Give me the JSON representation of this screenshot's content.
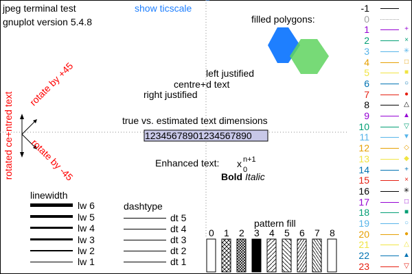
{
  "header": {
    "terminal": "jpeg  terminal test",
    "version": "gnuplot version 5.4.8",
    "ticscale": "show ticscale"
  },
  "polygons": {
    "label": "filled polygons:",
    "colors": [
      "#1e7fff",
      "#5fd35f"
    ]
  },
  "justification": {
    "left": "left justified",
    "centre": "centre+d text",
    "right": "right justified"
  },
  "dimensions": {
    "label": "true vs. estimated text dimensions",
    "sample": "12345678901234567890"
  },
  "enhanced": {
    "label": "Enhanced text:",
    "base": "x",
    "sub": "0",
    "sup": "n+1",
    "bold": "Bold",
    "italic": "Italic"
  },
  "rotation": {
    "centred": "rotated ce+ntred text",
    "plus45": "rotate by +45",
    "minus45": "rotate by -45",
    "color": "#ff0000"
  },
  "linewidth": {
    "title": "linewidth",
    "items": [
      "lw 6",
      "lw 5",
      "lw 4",
      "lw 3",
      "lw 2",
      "lw 1"
    ]
  },
  "dashtype": {
    "title": "dashtype",
    "items": [
      "dt 5",
      "dt 4",
      "dt 3",
      "dt 2",
      "dt 1"
    ]
  },
  "pattern": {
    "title": "pattern fill",
    "numbers": [
      "0",
      "1",
      "2",
      "3",
      "4",
      "5",
      "6",
      "7",
      "8"
    ]
  },
  "key": [
    {
      "label": "-1",
      "color": "#000000",
      "point": ""
    },
    {
      "label": "0",
      "color": "#a0a0a0",
      "point": ""
    },
    {
      "label": "1",
      "color": "#9400d3",
      "point": "+"
    },
    {
      "label": "2",
      "color": "#009e73",
      "point": "×"
    },
    {
      "label": "3",
      "color": "#56b4e9",
      "point": "✳"
    },
    {
      "label": "4",
      "color": "#e69f00",
      "point": "□"
    },
    {
      "label": "5",
      "color": "#f0e442",
      "point": "■"
    },
    {
      "label": "6",
      "color": "#0072b2",
      "point": "○"
    },
    {
      "label": "7",
      "color": "#e51e10",
      "point": "●"
    },
    {
      "label": "8",
      "color": "#000000",
      "point": "△"
    },
    {
      "label": "9",
      "color": "#9400d3",
      "point": "▲"
    },
    {
      "label": "10",
      "color": "#009e73",
      "point": "▽"
    },
    {
      "label": "11",
      "color": "#56b4e9",
      "point": "▼"
    },
    {
      "label": "12",
      "color": "#e69f00",
      "point": "◇"
    },
    {
      "label": "13",
      "color": "#f0e442",
      "point": "◆"
    },
    {
      "label": "14",
      "color": "#0072b2",
      "point": "+"
    },
    {
      "label": "15",
      "color": "#e51e10",
      "point": "×"
    },
    {
      "label": "16",
      "color": "#000000",
      "point": "✳"
    },
    {
      "label": "17",
      "color": "#9400d3",
      "point": "□"
    },
    {
      "label": "18",
      "color": "#009e73",
      "point": "■"
    },
    {
      "label": "19",
      "color": "#56b4e9",
      "point": "○"
    },
    {
      "label": "20",
      "color": "#e69f00",
      "point": "●"
    },
    {
      "label": "21",
      "color": "#f0e442",
      "point": "△"
    },
    {
      "label": "22",
      "color": "#0072b2",
      "point": "▲"
    },
    {
      "label": "23",
      "color": "#e51e10",
      "point": "▽"
    }
  ]
}
